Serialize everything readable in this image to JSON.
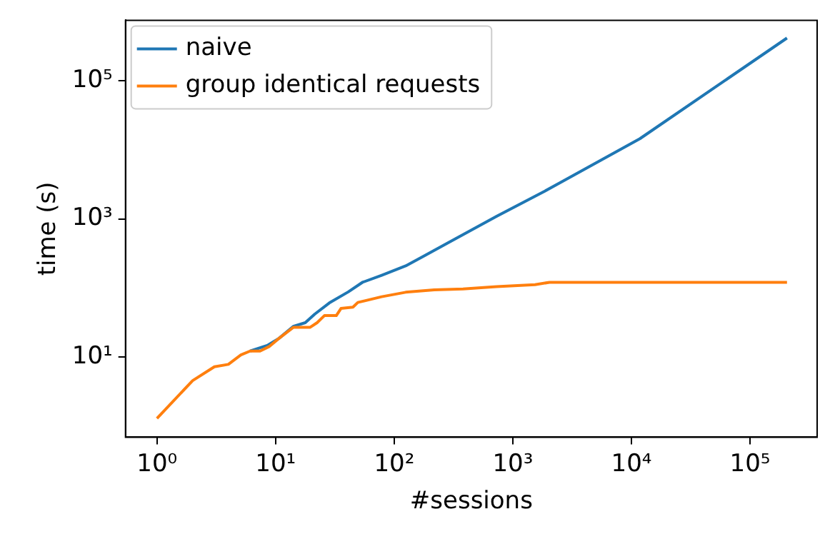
{
  "chart_data": {
    "type": "line",
    "xlabel": "#sessions",
    "ylabel": "time (s)",
    "log": "xy",
    "grid": false,
    "legend": "top left",
    "marker": "none",
    "line_style": "solid",
    "xlim": [
      0.543,
      368000
    ],
    "ylim": [
      0.7,
      740000
    ],
    "xticks": [
      {
        "value": 1,
        "label": "10⁰"
      },
      {
        "value": 10,
        "label": "10¹"
      },
      {
        "value": 100,
        "label": "10²"
      },
      {
        "value": 1000,
        "label": "10³"
      },
      {
        "value": 10000,
        "label": "10⁴"
      },
      {
        "value": 100000,
        "label": "10⁵"
      }
    ],
    "yticks": [
      {
        "value": 10,
        "label": "10¹"
      },
      {
        "value": 1000,
        "label": "10³"
      },
      {
        "value": 100000,
        "label": "10⁵"
      }
    ],
    "series": [
      {
        "name": "naive",
        "color": "#1f77b4",
        "x": [
          6.1,
          8.5,
          10.7,
          14.1,
          17.8,
          21.4,
          28.4,
          41,
          54,
          78.5,
          125,
          181,
          289,
          730,
          1850,
          11800,
          205000
        ],
        "values": [
          12.3,
          14.8,
          18.8,
          27.9,
          31.6,
          42,
          61,
          88,
          121,
          153,
          209,
          295,
          457,
          1090,
          2500,
          14400,
          410000
        ]
      },
      {
        "name": "group identical requests",
        "color": "#ff7f0e",
        "x": [
          1,
          2,
          3.05,
          4,
          5.1,
          6.1,
          7.4,
          8.9,
          10.7,
          14.1,
          19.5,
          22.4,
          25.8,
          32.5,
          35.6,
          44.9,
          49.4,
          78.5,
          125,
          218,
          381,
          730,
          1540,
          2040,
          205000
        ],
        "values": [
          1.31,
          4.6,
          7.3,
          7.9,
          10.8,
          12.3,
          12.3,
          14.4,
          18.8,
          27,
          27,
          31.6,
          40,
          40,
          50.7,
          53,
          62,
          75,
          87,
          94,
          97,
          105,
          112,
          121,
          121
        ]
      }
    ]
  }
}
